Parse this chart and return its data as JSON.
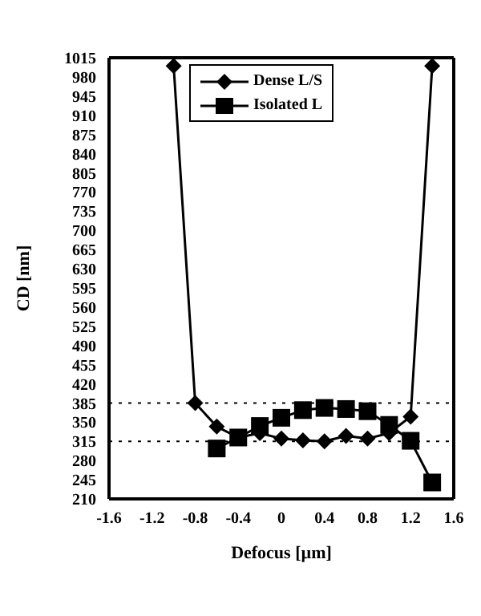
{
  "chart_data": {
    "type": "line",
    "xlabel": "Defocus [µm]",
    "ylabel": "CD [nm]",
    "series": [
      {
        "name": "Dense L/S",
        "color": "#000000",
        "marker": "diamond",
        "x": [
          -1.0,
          -0.8,
          -0.6,
          -0.4,
          -0.2,
          0,
          0.2,
          0.4,
          0.6,
          0.8,
          1.0,
          1.2,
          1.4
        ],
        "values": [
          1000,
          385,
          342,
          322,
          330,
          320,
          317,
          315,
          325,
          320,
          330,
          360,
          1000
        ]
      },
      {
        "name": "Isolated L",
        "color": "#000000",
        "marker": "square",
        "x": [
          -0.6,
          -0.4,
          -0.2,
          0,
          0.2,
          0.4,
          0.6,
          0.8,
          1.0,
          1.2,
          1.4
        ],
        "values": [
          302,
          322,
          343,
          358,
          372,
          376,
          374,
          370,
          345,
          316,
          240
        ]
      }
    ],
    "xlim": [
      -1.6,
      1.6
    ],
    "xticks": [
      -1.6,
      -1.2,
      -0.8,
      -0.4,
      0,
      0.4,
      0.8,
      1.2,
      1.6
    ],
    "ylim": [
      210,
      1015
    ],
    "yticks": [
      210,
      245,
      280,
      315,
      350,
      385,
      420,
      455,
      490,
      525,
      560,
      595,
      630,
      665,
      700,
      735,
      770,
      805,
      840,
      875,
      910,
      945,
      980,
      1015
    ],
    "ref_lines": [
      {
        "axis": "y",
        "value": 385,
        "line_style": "dotted",
        "color": "#000000"
      },
      {
        "axis": "y",
        "value": 315,
        "line_style": "dotted",
        "color": "#000000"
      }
    ],
    "grid": false,
    "legend": "top",
    "line_style": "solid"
  }
}
